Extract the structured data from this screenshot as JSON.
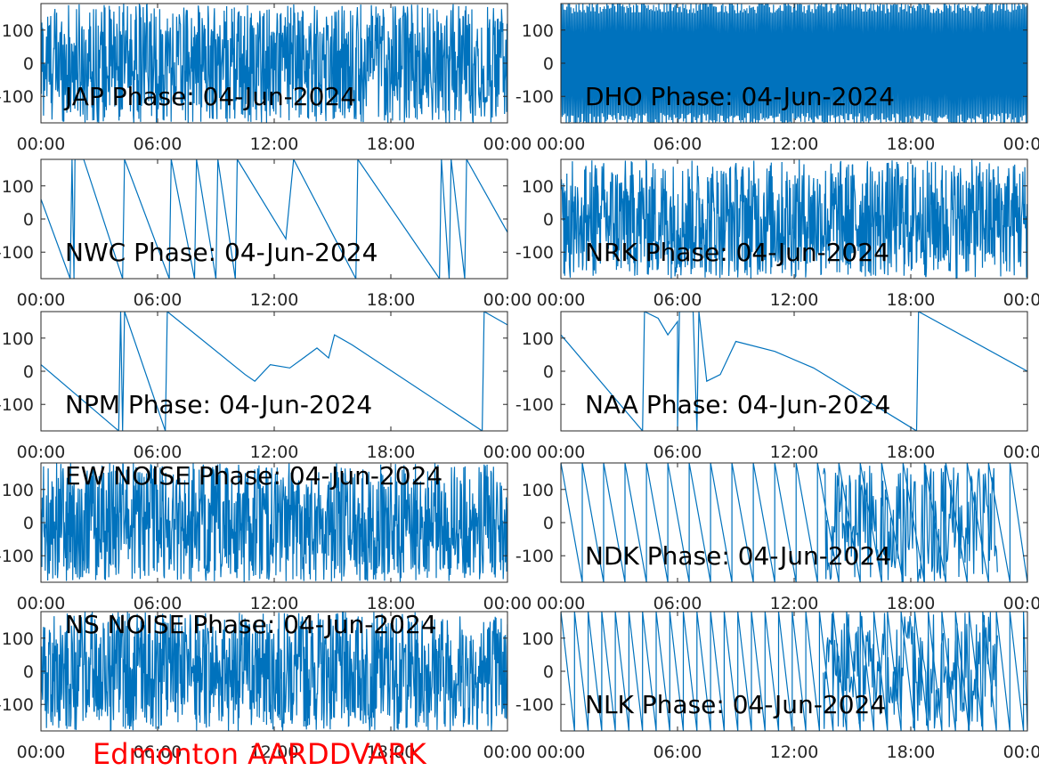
{
  "figure": {
    "footer": "Edmonton AARDDVARK",
    "footer_color": "#ff0000",
    "line_color": "#0072bd"
  },
  "chart_data": [
    {
      "type": "line",
      "title": "JAP Phase: 04-Jun-2024",
      "pattern": "noise",
      "xticks": [
        "00:00",
        "06:00",
        "12:00",
        "18:00",
        "00:00"
      ],
      "yticks": [
        "100",
        "0",
        "-100"
      ],
      "ytick_values": [
        100,
        0,
        -100
      ],
      "xlim_hours": [
        0,
        24
      ],
      "ylim": [
        -180,
        180
      ],
      "title_pos": "bottom"
    },
    {
      "type": "line",
      "title": "DHO Phase: 04-Jun-2024",
      "pattern": "dense",
      "xticks": [
        "00:00",
        "06:00",
        "12:00",
        "18:00",
        "00:00"
      ],
      "yticks": [
        "100",
        "0",
        "-100"
      ],
      "ytick_values": [
        100,
        0,
        -100
      ],
      "xlim_hours": [
        0,
        24
      ],
      "ylim": [
        -180,
        180
      ],
      "title_pos": "bottom"
    },
    {
      "type": "line",
      "title": "NWC Phase: 04-Jun-2024",
      "pattern": "points",
      "xticks": [
        "00:00",
        "06:00",
        "12:00",
        "18:00",
        "00:00"
      ],
      "yticks": [
        "100",
        "0",
        "-100"
      ],
      "ytick_values": [
        100,
        0,
        -100
      ],
      "xlim_hours": [
        0,
        24
      ],
      "ylim": [
        -180,
        180
      ],
      "title_pos": "bottom",
      "points": [
        [
          0,
          60
        ],
        [
          1.5,
          -180
        ],
        [
          1.6,
          180
        ],
        [
          1.7,
          -180
        ],
        [
          1.75,
          180
        ],
        [
          2.2,
          180
        ],
        [
          4.2,
          -180
        ],
        [
          4.3,
          180
        ],
        [
          6.6,
          -180
        ],
        [
          6.7,
          180
        ],
        [
          7.9,
          -180
        ],
        [
          8.0,
          180
        ],
        [
          9.0,
          -180
        ],
        [
          9.1,
          180
        ],
        [
          10,
          -180
        ],
        [
          10.1,
          180
        ],
        [
          12.6,
          -60
        ],
        [
          13,
          180
        ],
        [
          16.2,
          -180
        ],
        [
          16.3,
          180
        ],
        [
          20.5,
          -180
        ],
        [
          20.6,
          180
        ],
        [
          21,
          -180
        ],
        [
          21.1,
          180
        ],
        [
          21.8,
          -180
        ],
        [
          21.9,
          180
        ],
        [
          24,
          -40
        ]
      ]
    },
    {
      "type": "line",
      "title": "NRK Phase: 04-Jun-2024",
      "pattern": "noise",
      "xticks": [
        "00:00",
        "06:00",
        "12:00",
        "18:00",
        "00:00"
      ],
      "yticks": [
        "100",
        "0",
        "-100"
      ],
      "ytick_values": [
        100,
        0,
        -100
      ],
      "xlim_hours": [
        0,
        24
      ],
      "ylim": [
        -180,
        180
      ],
      "title_pos": "bottom"
    },
    {
      "type": "line",
      "title": "NPM Phase: 04-Jun-2024",
      "pattern": "points",
      "xticks": [
        "00:00",
        "06:00",
        "12:00",
        "18:00",
        "00:00"
      ],
      "yticks": [
        "100",
        "0",
        "-100"
      ],
      "ytick_values": [
        100,
        0,
        -100
      ],
      "xlim_hours": [
        0,
        24
      ],
      "ylim": [
        -180,
        180
      ],
      "title_pos": "bottom",
      "points": [
        [
          0,
          20
        ],
        [
          4,
          -180
        ],
        [
          4.1,
          180
        ],
        [
          4.2,
          -180
        ],
        [
          4.3,
          180
        ],
        [
          6.4,
          -180
        ],
        [
          6.5,
          180
        ],
        [
          10.5,
          -10
        ],
        [
          11,
          -30
        ],
        [
          11.8,
          20
        ],
        [
          12.8,
          10
        ],
        [
          13.5,
          40
        ],
        [
          14.2,
          70
        ],
        [
          14.8,
          40
        ],
        [
          15.1,
          110
        ],
        [
          16,
          80
        ],
        [
          22.7,
          -180
        ],
        [
          22.8,
          180
        ],
        [
          24,
          140
        ]
      ]
    },
    {
      "type": "line",
      "title": "NAA Phase: 04-Jun-2024",
      "pattern": "points",
      "xticks": [
        "00:00",
        "06:00",
        "12:00",
        "18:00",
        "00:00"
      ],
      "yticks": [
        "100",
        "0",
        "-100"
      ],
      "ytick_values": [
        100,
        0,
        -100
      ],
      "xlim_hours": [
        0,
        24
      ],
      "ylim": [
        -180,
        180
      ],
      "title_pos": "bottom",
      "points": [
        [
          0,
          110
        ],
        [
          4.2,
          -180
        ],
        [
          4.3,
          180
        ],
        [
          5,
          160
        ],
        [
          5.5,
          110
        ],
        [
          6,
          150
        ],
        [
          6,
          -180
        ],
        [
          6.1,
          180
        ],
        [
          6.8,
          180
        ],
        [
          7,
          -180
        ],
        [
          7.1,
          180
        ],
        [
          7.5,
          -30
        ],
        [
          8.2,
          -10
        ],
        [
          9,
          90
        ],
        [
          11,
          60
        ],
        [
          13,
          10
        ],
        [
          18.3,
          -180
        ],
        [
          18.4,
          180
        ],
        [
          24,
          0
        ]
      ]
    },
    {
      "type": "line",
      "title": "EW NOISE Phase: 04-Jun-2024",
      "pattern": "noise",
      "xticks": [
        "00:00",
        "06:00",
        "12:00",
        "18:00",
        "00:00"
      ],
      "yticks": [
        "100",
        "0",
        "-100"
      ],
      "ytick_values": [
        100,
        0,
        -100
      ],
      "xlim_hours": [
        0,
        24
      ],
      "ylim": [
        -180,
        180
      ],
      "title_pos": "top"
    },
    {
      "type": "line",
      "title": "NDK Phase: 04-Jun-2024",
      "pattern": "sawtooth",
      "xticks": [
        "00:00",
        "06:00",
        "12:00",
        "18:00",
        "00:00"
      ],
      "yticks": [
        "100",
        "0",
        "-100"
      ],
      "ytick_values": [
        100,
        0,
        -100
      ],
      "xlim_hours": [
        0,
        24
      ],
      "ylim": [
        -180,
        180
      ],
      "title_pos": "bottom",
      "period_hours": 1.1
    },
    {
      "type": "line",
      "title": "NS NOISE Phase: 04-Jun-2024",
      "pattern": "noise",
      "xticks": [
        "00:00",
        "06:00",
        "12:00",
        "18:00",
        "00:00"
      ],
      "yticks": [
        "100",
        "0",
        "-100"
      ],
      "ytick_values": [
        100,
        0,
        -100
      ],
      "xlim_hours": [
        0,
        24
      ],
      "ylim": [
        -180,
        180
      ],
      "title_pos": "top"
    },
    {
      "type": "line",
      "title": "NLK Phase: 04-Jun-2024",
      "pattern": "sawtooth",
      "xticks": [
        "00:00",
        "06:00",
        "12:00",
        "18:00",
        "00:00"
      ],
      "yticks": [
        "100",
        "0",
        "-100"
      ],
      "ytick_values": [
        100,
        0,
        -100
      ],
      "xlim_hours": [
        0,
        24
      ],
      "ylim": [
        -180,
        180
      ],
      "title_pos": "bottom",
      "period_hours": 0.7
    }
  ]
}
